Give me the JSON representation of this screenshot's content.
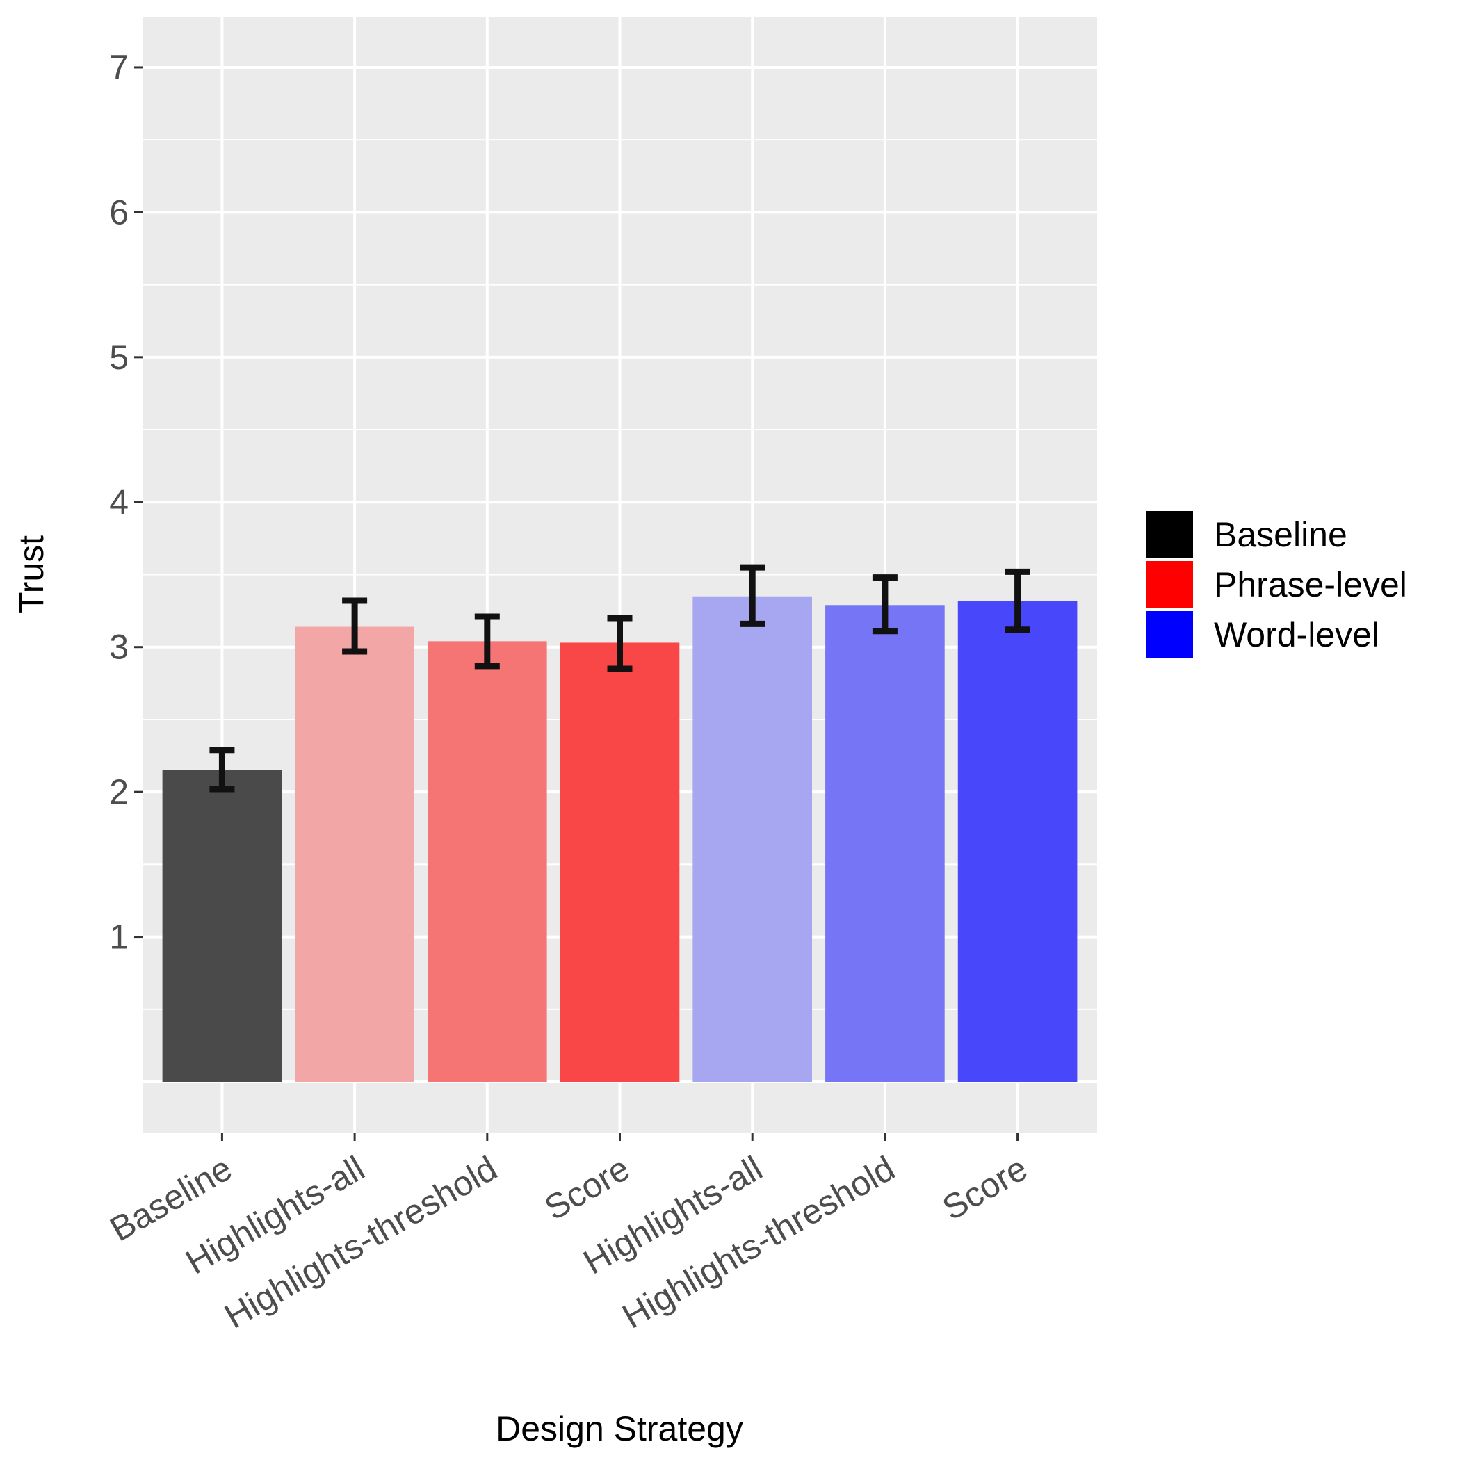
{
  "chart_data": {
    "type": "bar",
    "title": "",
    "xlabel": "Design Strategy",
    "ylabel": "Trust",
    "ylim": [
      -0.35,
      7.35
    ],
    "yticks": [
      1,
      2,
      3,
      4,
      5,
      6,
      7
    ],
    "grid": true,
    "legend_position": "right",
    "categories": [
      "Baseline",
      "Highlights-all",
      "Highlights-threshold",
      "Score",
      "Highlights-all",
      "Highlights-threshold",
      "Score"
    ],
    "groups": [
      "Baseline",
      "Phrase-level",
      "Phrase-level",
      "Phrase-level",
      "Word-level",
      "Word-level",
      "Word-level"
    ],
    "values": [
      2.15,
      3.14,
      3.04,
      3.03,
      3.35,
      3.29,
      3.32
    ],
    "error_low": [
      2.02,
      2.97,
      2.87,
      2.85,
      3.16,
      3.11,
      3.12
    ],
    "error_high": [
      2.29,
      3.32,
      3.21,
      3.2,
      3.55,
      3.48,
      3.52
    ],
    "bar_colors": [
      "#4a4a4a",
      "#f2a6a6",
      "#f57474",
      "#f94747",
      "#a7a7f1",
      "#7575f5",
      "#4848fa"
    ],
    "legend": [
      {
        "label": "Baseline",
        "color": "#000000"
      },
      {
        "label": "Phrase-level",
        "color": "#ff0000"
      },
      {
        "label": "Word-level",
        "color": "#0000ff"
      }
    ]
  }
}
